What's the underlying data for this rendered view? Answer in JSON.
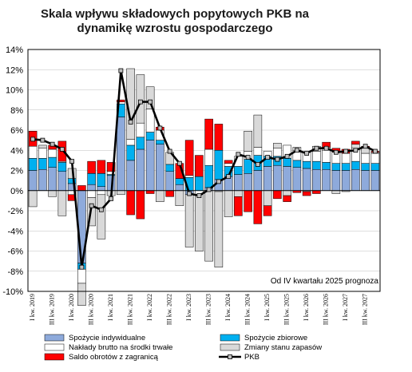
{
  "chart_data": {
    "type": "bar",
    "title_lines": [
      "Skala wpływu składowych popytowych PKB na",
      "dynamikę wzrostu gospodarczego"
    ],
    "ylim": [
      -10,
      14
    ],
    "yticks": [
      "14%",
      "12%",
      "10%",
      "8%",
      "6%",
      "4%",
      "2%",
      "0%",
      "-2%",
      "-4%",
      "-6%",
      "-8%",
      "-10%"
    ],
    "ytick_values": [
      14,
      12,
      10,
      8,
      6,
      4,
      2,
      0,
      -2,
      -4,
      -6,
      -8,
      -10
    ],
    "xtick_labels": [
      "I kw. 2019",
      "III kw. 2019",
      "I kw. 2020",
      "III kw. 2020",
      "I kw. 2021",
      "III kw. 2021",
      "I kw. 2022",
      "III kw. 2022",
      "I kw. 2023",
      "III kw. 2023",
      "I kw. 2024",
      "III kw. 2024",
      "I kw. 2025",
      "III kw. 2025",
      "I kw. 2026",
      "III kw. 2026",
      "I kw. 2027",
      "III kw. 2027"
    ],
    "annotation": "Od IV kwartału 2025 prognoza",
    "grid": true,
    "legend_position": "bottom",
    "series": [
      {
        "name": "Spożycie indywidualne",
        "color": "#8eaadb",
        "values": [
          2.0,
          2.1,
          2.3,
          1.9,
          0.7,
          -7.2,
          0.6,
          0.4,
          1.5,
          7.3,
          3.0,
          4.1,
          5.0,
          4.6,
          1.9,
          0.6,
          -0.4,
          0.0,
          0.3,
          1.1,
          1.4,
          1.6,
          1.7,
          2.0,
          2.4,
          2.5,
          2.4,
          2.3,
          2.2,
          2.1,
          2.1,
          2.0,
          2.0,
          2.1,
          2.0,
          2.0
        ]
      },
      {
        "name": "Spożycie zbiorowe",
        "color": "#00b0f0",
        "values": [
          1.2,
          1.1,
          1.0,
          0.9,
          0.5,
          -0.6,
          1.1,
          1.3,
          0.1,
          1.3,
          1.5,
          1.2,
          0.8,
          0.4,
          0.7,
          0.6,
          1.3,
          1.4,
          2.2,
          2.9,
          1.0,
          0.8,
          1.4,
          1.5,
          1.0,
          0.9,
          0.8,
          0.7,
          0.7,
          0.8,
          0.7,
          0.7,
          0.7,
          0.8,
          0.7,
          0.7
        ]
      },
      {
        "name": "Nakłady brutto na środki trwałe",
        "color": "#ffffff",
        "values": [
          1.2,
          1.0,
          0.8,
          0.1,
          -0.4,
          -1.4,
          -0.7,
          -0.4,
          0.3,
          0.2,
          0.6,
          1.4,
          2.3,
          1.0,
          0.0,
          0.0,
          0.2,
          -0.4,
          1.6,
          -0.1,
          0.3,
          1.0,
          0.8,
          0.8,
          0.5,
          0.8,
          1.3,
          1.0,
          0.9,
          1.0,
          1.2,
          1.1,
          1.0,
          1.3,
          1.0,
          1.0
        ]
      },
      {
        "name": "Zmiany stanu zapasów",
        "color": "#d9d9d9",
        "values": [
          -1.6,
          0.3,
          -0.6,
          -2.5,
          1.0,
          -2.2,
          -2.8,
          -4.4,
          -0.5,
          -0.4,
          7.0,
          4.8,
          2.2,
          -1.1,
          1.2,
          -1.5,
          -5.2,
          -5.6,
          -7.0,
          -7.5,
          -2.6,
          -0.6,
          2.0,
          3.2,
          -1.5,
          0.5,
          -0.5,
          0.3,
          -0.1,
          0.5,
          0.3,
          -0.3,
          -0.1,
          0.4,
          0.5,
          0.1
        ]
      },
      {
        "name": "Saldo obrotów  z zagranicą",
        "color": "#ff0000",
        "values": [
          1.5,
          0.0,
          0.4,
          2.0,
          -0.6,
          0.5,
          1.2,
          1.3,
          0.9,
          0.2,
          -2.4,
          -2.8,
          -0.3,
          0.3,
          -0.6,
          1.5,
          3.5,
          2.1,
          3.0,
          2.6,
          0.3,
          -1.9,
          -2.1,
          -3.3,
          -1.0,
          -0.8,
          -0.6,
          -0.2,
          -0.4,
          -0.3,
          0.5,
          0.4,
          0.4,
          0.3,
          0.2,
          0.1
        ]
      },
      {
        "name": "PKB",
        "color": "#000000",
        "type": "line",
        "values": [
          5.1,
          5.0,
          4.6,
          4.1,
          2.9,
          -7.6,
          -1.5,
          -1.9,
          -0.8,
          11.9,
          6.8,
          8.8,
          8.8,
          6.2,
          3.9,
          2.7,
          -0.3,
          -0.5,
          0.1,
          0.9,
          1.4,
          3.6,
          3.3,
          2.6,
          3.3,
          3.1,
          3.4,
          4.0,
          3.7,
          4.2,
          4.2,
          3.8,
          3.9,
          4.0,
          4.4,
          3.9
        ]
      }
    ]
  }
}
